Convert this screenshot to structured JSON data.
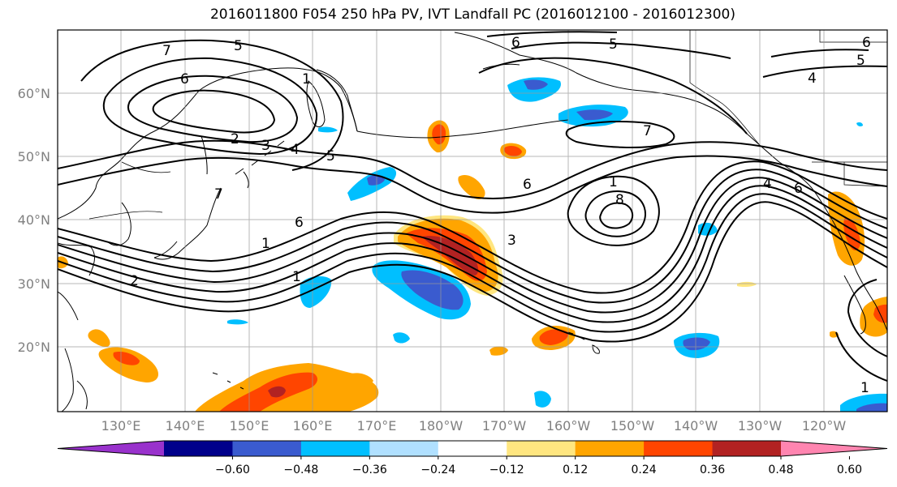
{
  "title": "2016011800 F054 250 hPa PV, IVT Landfall PC (2016012100 - 2016012300)",
  "lat_labels": [
    "60°N",
    "50°N",
    "40°N",
    "30°N",
    "20°N"
  ],
  "lon_labels": [
    "130°E",
    "140°E",
    "150°E",
    "160°E",
    "170°E",
    "180°W",
    "170°W",
    "160°W",
    "150°W",
    "140°W",
    "130°W",
    "120°W"
  ],
  "colorbar": {
    "ticks": [
      "−0.60",
      "−0.48",
      "−0.36",
      "−0.24",
      "−0.12",
      "0.12",
      "0.24",
      "0.36",
      "0.48",
      "0.60"
    ],
    "colors": [
      "#9932cc",
      "#00008b",
      "#3a5bcf",
      "#00bfff",
      "#b0e0ff",
      "#ffffff",
      "#ffe680",
      "#ffa500",
      "#ff4500",
      "#b22222",
      "#ff85b0"
    ]
  },
  "contour_labels": [
    "7",
    "6",
    "5",
    "1",
    "2",
    "3",
    "4",
    "5",
    "6",
    "5",
    "6",
    "5",
    "4",
    "7",
    "1",
    "8",
    "6",
    "4",
    "1",
    "6",
    "7",
    "3",
    "1",
    "2",
    "1",
    "6"
  ]
}
